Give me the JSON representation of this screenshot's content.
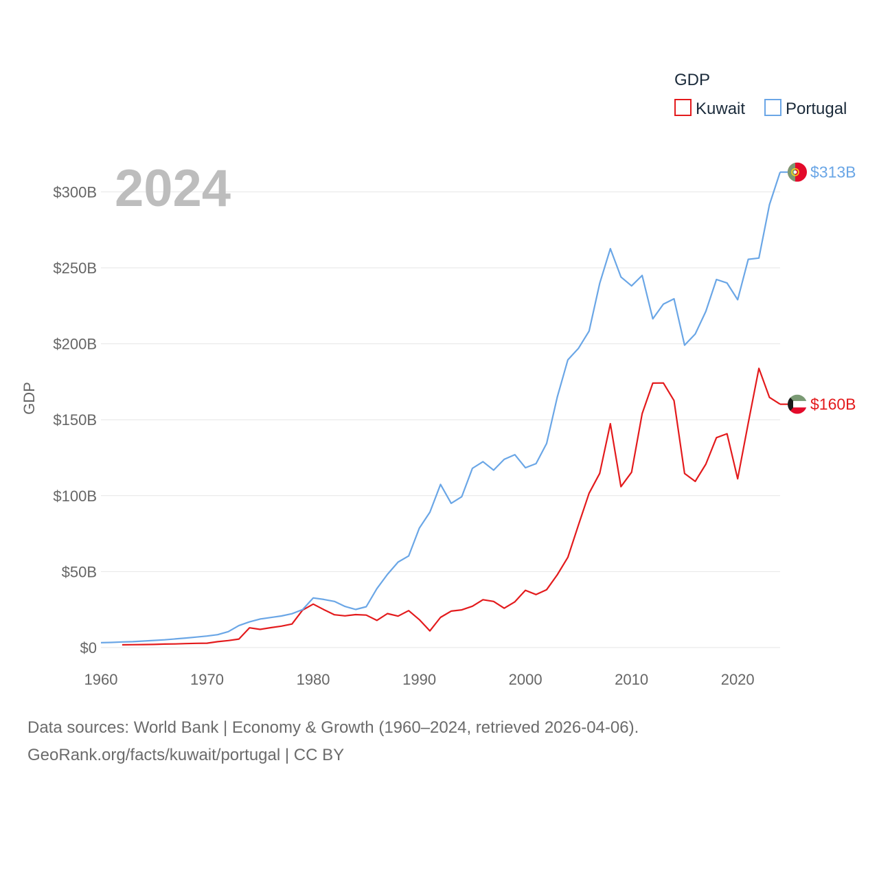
{
  "chart_data": {
    "type": "line",
    "year_label": "2024",
    "ylabel": "GDP",
    "xlabel": "",
    "xlim": [
      1960,
      2024
    ],
    "ylim": [
      0,
      313
    ],
    "x_ticks": [
      1960,
      1970,
      1980,
      1990,
      2000,
      2010,
      2020
    ],
    "y_ticks": [
      {
        "value": 0,
        "label": "$0"
      },
      {
        "value": 50,
        "label": "$50B"
      },
      {
        "value": 100,
        "label": "$100B"
      },
      {
        "value": 150,
        "label": "$150B"
      },
      {
        "value": 200,
        "label": "$200B"
      },
      {
        "value": 250,
        "label": "$250B"
      },
      {
        "value": 300,
        "label": "$300B"
      }
    ],
    "legend": {
      "title": "GDP",
      "position": "top-right"
    },
    "series": [
      {
        "name": "Kuwait",
        "color": "#e31a1c",
        "end_label": "$160B",
        "flag": "kuwait-flag",
        "points": [
          [
            1962,
            1.8
          ],
          [
            1963,
            1.9
          ],
          [
            1964,
            2.0
          ],
          [
            1965,
            2.1
          ],
          [
            1966,
            2.3
          ],
          [
            1967,
            2.4
          ],
          [
            1968,
            2.6
          ],
          [
            1969,
            2.8
          ],
          [
            1970,
            2.9
          ],
          [
            1971,
            3.9
          ],
          [
            1972,
            4.6
          ],
          [
            1973,
            5.6
          ],
          [
            1974,
            13.0
          ],
          [
            1975,
            12.0
          ],
          [
            1976,
            13.1
          ],
          [
            1977,
            14.1
          ],
          [
            1978,
            15.5
          ],
          [
            1979,
            24.7
          ],
          [
            1980,
            28.6
          ],
          [
            1981,
            25.0
          ],
          [
            1982,
            21.6
          ],
          [
            1983,
            20.9
          ],
          [
            1984,
            21.7
          ],
          [
            1985,
            21.4
          ],
          [
            1986,
            17.9
          ],
          [
            1987,
            22.4
          ],
          [
            1988,
            20.7
          ],
          [
            1989,
            24.3
          ],
          [
            1990,
            18.4
          ],
          [
            1991,
            11.0
          ],
          [
            1992,
            19.9
          ],
          [
            1993,
            24.0
          ],
          [
            1994,
            24.8
          ],
          [
            1995,
            27.2
          ],
          [
            1996,
            31.5
          ],
          [
            1997,
            30.4
          ],
          [
            1998,
            25.9
          ],
          [
            1999,
            30.1
          ],
          [
            2000,
            37.7
          ],
          [
            2001,
            34.9
          ],
          [
            2002,
            38.1
          ],
          [
            2003,
            47.9
          ],
          [
            2004,
            59.4
          ],
          [
            2005,
            80.8
          ],
          [
            2006,
            101.6
          ],
          [
            2007,
            114.7
          ],
          [
            2008,
            147.4
          ],
          [
            2009,
            105.9
          ],
          [
            2010,
            115.4
          ],
          [
            2011,
            154.0
          ],
          [
            2012,
            174.1
          ],
          [
            2013,
            174.2
          ],
          [
            2014,
            162.6
          ],
          [
            2015,
            114.6
          ],
          [
            2016,
            109.4
          ],
          [
            2017,
            120.7
          ],
          [
            2018,
            138.2
          ],
          [
            2019,
            140.8
          ],
          [
            2020,
            111.1
          ],
          [
            2021,
            147.8
          ],
          [
            2022,
            183.8
          ],
          [
            2023,
            164.7
          ],
          [
            2024,
            160.2
          ]
        ]
      },
      {
        "name": "Portugal",
        "color": "#6aa6e6",
        "end_label": "$313B",
        "flag": "portugal-flag",
        "points": [
          [
            1960,
            3.2
          ],
          [
            1961,
            3.4
          ],
          [
            1962,
            3.7
          ],
          [
            1963,
            3.9
          ],
          [
            1964,
            4.3
          ],
          [
            1965,
            4.7
          ],
          [
            1966,
            5.1
          ],
          [
            1967,
            5.7
          ],
          [
            1968,
            6.3
          ],
          [
            1969,
            6.9
          ],
          [
            1970,
            7.6
          ],
          [
            1971,
            8.5
          ],
          [
            1972,
            10.5
          ],
          [
            1973,
            14.5
          ],
          [
            1974,
            16.9
          ],
          [
            1975,
            18.8
          ],
          [
            1976,
            19.8
          ],
          [
            1977,
            20.8
          ],
          [
            1978,
            22.3
          ],
          [
            1979,
            25.0
          ],
          [
            1980,
            32.7
          ],
          [
            1981,
            31.7
          ],
          [
            1982,
            30.4
          ],
          [
            1983,
            27.1
          ],
          [
            1984,
            25.1
          ],
          [
            1985,
            26.9
          ],
          [
            1986,
            38.8
          ],
          [
            1987,
            48.2
          ],
          [
            1988,
            56.3
          ],
          [
            1989,
            60.3
          ],
          [
            1990,
            78.6
          ],
          [
            1991,
            89.1
          ],
          [
            1992,
            107.4
          ],
          [
            1993,
            95.0
          ],
          [
            1994,
            99.3
          ],
          [
            1995,
            118.0
          ],
          [
            1996,
            122.4
          ],
          [
            1997,
            116.8
          ],
          [
            1998,
            123.9
          ],
          [
            1999,
            127.0
          ],
          [
            2000,
            118.4
          ],
          [
            2001,
            121.1
          ],
          [
            2002,
            134.4
          ],
          [
            2003,
            164.9
          ],
          [
            2004,
            189.4
          ],
          [
            2005,
            197.0
          ],
          [
            2006,
            208.3
          ],
          [
            2007,
            239.8
          ],
          [
            2008,
            262.6
          ],
          [
            2009,
            244.0
          ],
          [
            2010,
            238.1
          ],
          [
            2011,
            245.0
          ],
          [
            2012,
            216.4
          ],
          [
            2013,
            226.1
          ],
          [
            2014,
            229.6
          ],
          [
            2015,
            199.1
          ],
          [
            2016,
            206.4
          ],
          [
            2017,
            221.3
          ],
          [
            2018,
            242.3
          ],
          [
            2019,
            240.0
          ],
          [
            2020,
            229.0
          ],
          [
            2021,
            255.6
          ],
          [
            2022,
            256.4
          ],
          [
            2023,
            291.6
          ],
          [
            2024,
            313.0
          ]
        ]
      }
    ]
  },
  "source": {
    "line1": "Data sources: World Bank | Economy & Growth (1960–2024, retrieved 2026-04-06).",
    "line2": "GeoRank.org/facts/kuwait/portugal | CC BY"
  }
}
